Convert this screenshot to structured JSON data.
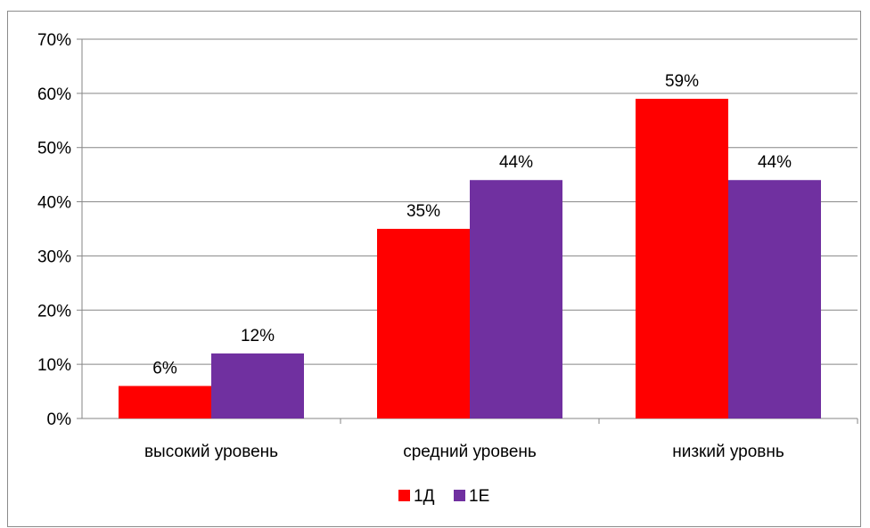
{
  "chart_data": {
    "type": "bar",
    "title": "",
    "xlabel": "",
    "ylabel": "",
    "categories": [
      "высокий уровень",
      "средний уровень",
      "низкий уровнь"
    ],
    "series": [
      {
        "name": "1Д",
        "values": [
          6,
          35,
          59
        ],
        "color": "#ff0000"
      },
      {
        "name": "1Е",
        "values": [
          12,
          44,
          44
        ],
        "color": "#7030a0"
      }
    ],
    "data_labels": [
      [
        "6%",
        "35%",
        "59%"
      ],
      [
        "12%",
        "44%",
        "44%"
      ]
    ],
    "ylim": [
      0,
      70
    ],
    "yticks": [
      0,
      10,
      20,
      30,
      40,
      50,
      60,
      70
    ],
    "ytick_labels": [
      "0%",
      "10%",
      "20%",
      "30%",
      "40%",
      "50%",
      "60%",
      "70%"
    ],
    "grid": true,
    "legend_position": "bottom"
  }
}
